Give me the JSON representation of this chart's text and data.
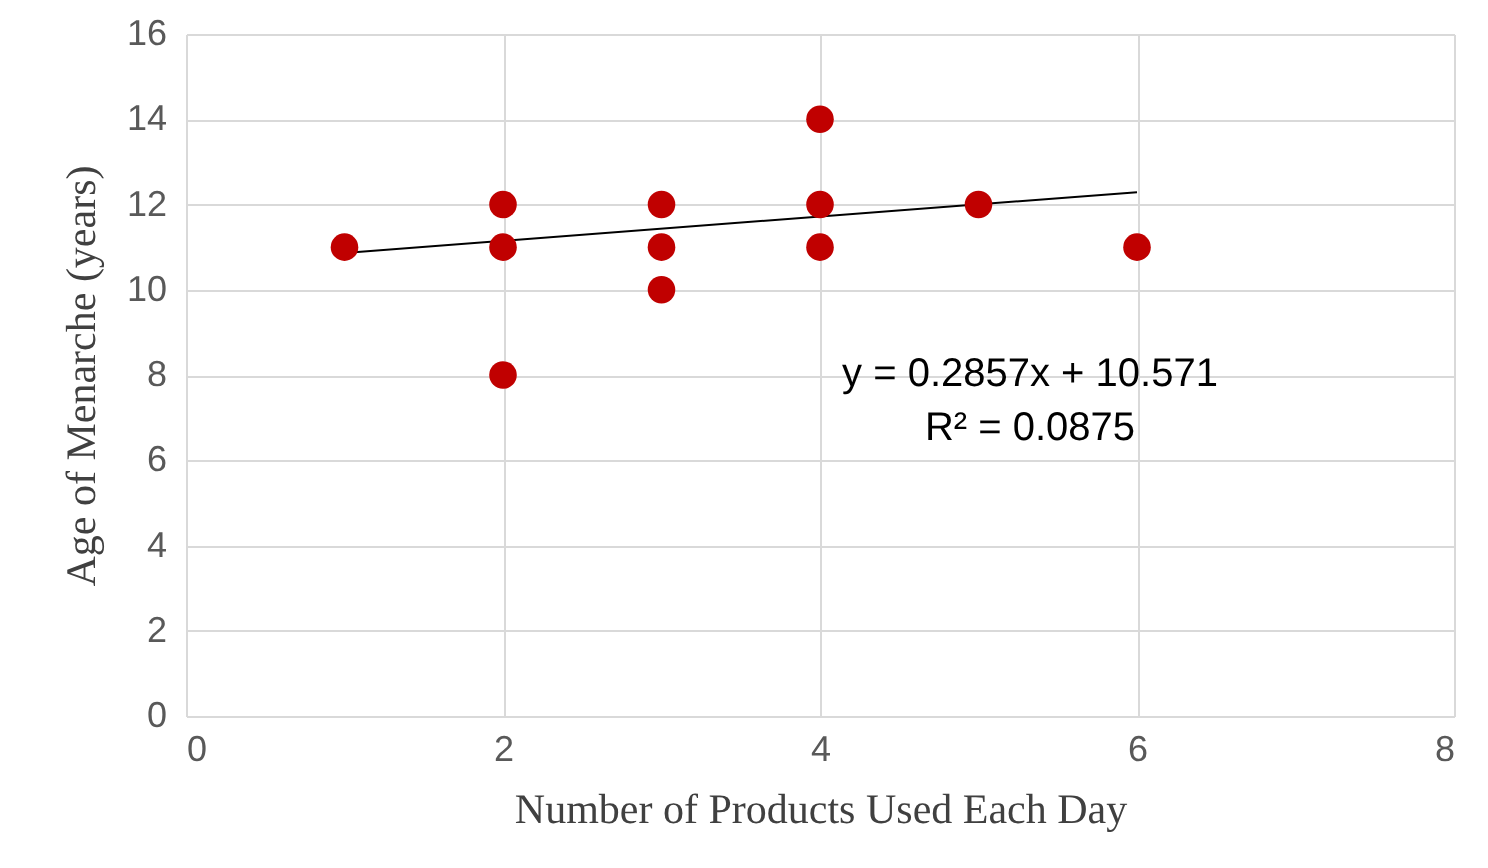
{
  "chart_data": {
    "type": "scatter",
    "xlabel": "Number of Products Used Each Day",
    "ylabel": "Age of Menarche (years)",
    "series": [
      {
        "color": "#c00000",
        "marker": "circle",
        "x": [
          1,
          2,
          2,
          2,
          3,
          3,
          3,
          4,
          4,
          4,
          5,
          6
        ],
        "values": [
          11,
          12,
          11,
          8,
          12,
          11,
          10,
          14,
          12,
          11,
          12,
          11
        ]
      },
      {
        "type": "line",
        "color": "#000000",
        "x": [
          1,
          6
        ],
        "values": [
          10.86,
          12.29
        ]
      }
    ],
    "xlim": [
      0,
      8
    ],
    "xticks": [
      0,
      2,
      4,
      6,
      8
    ],
    "ylim": [
      0,
      16
    ],
    "yticks": [
      0,
      2,
      4,
      6,
      8,
      10,
      12,
      14,
      16
    ],
    "grid": true,
    "annotations": [
      "y = 0.2857x + 10.571",
      "R² = 0.0875"
    ]
  }
}
